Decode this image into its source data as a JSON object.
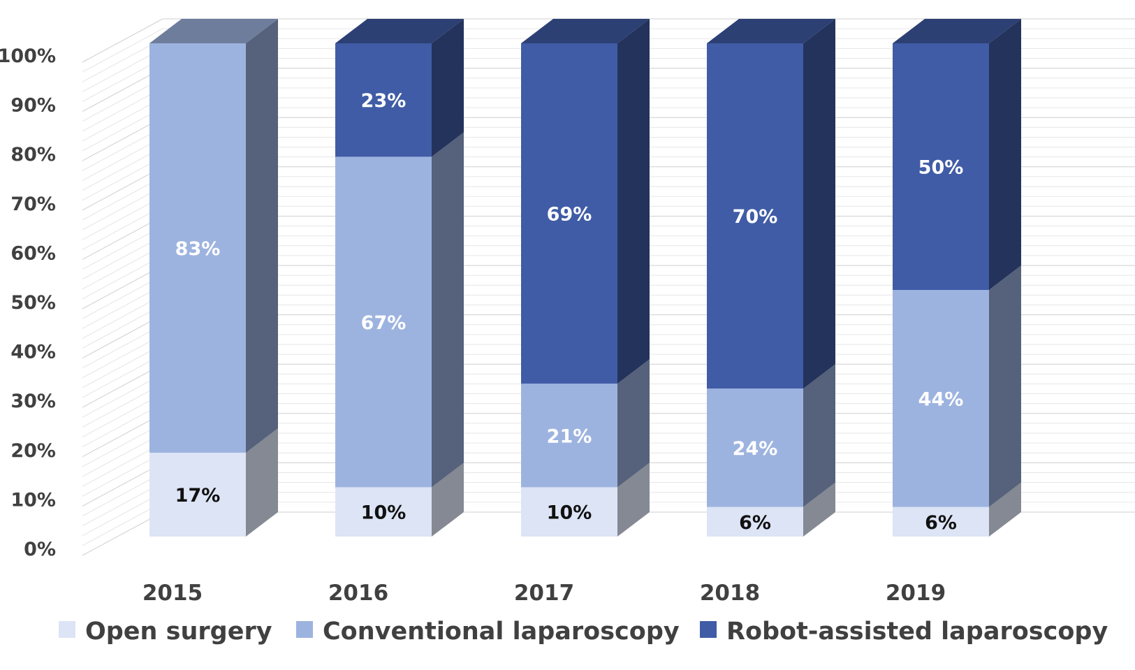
{
  "chart_data": {
    "type": "bar",
    "stacked": true,
    "percent_stacked": true,
    "three_d": true,
    "categories": [
      "2015",
      "2016",
      "2017",
      "2018",
      "2019"
    ],
    "series": [
      {
        "name": "Open surgery",
        "color": "#dce4f5",
        "label_color": "#111111",
        "values": [
          17,
          10,
          10,
          6,
          6
        ],
        "labels": [
          "17%",
          "10%",
          "10%",
          "6%",
          "6%"
        ]
      },
      {
        "name": "Conventional laparoscopy",
        "color": "#9db3df",
        "label_color": "#ffffff",
        "values": [
          83,
          67,
          21,
          24,
          44
        ],
        "labels": [
          "83%",
          "67%",
          "21%",
          "24%",
          "44%"
        ]
      },
      {
        "name": "Robot-assisted laparoscopy",
        "color": "#405ca6",
        "label_color": "#ffffff",
        "values": [
          0,
          23,
          69,
          70,
          50
        ],
        "labels": [
          "",
          "23%",
          "69%",
          "70%",
          "50%"
        ]
      }
    ],
    "ylim": [
      0,
      100
    ],
    "yticks": [
      "0%",
      "10%",
      "20%",
      "30%",
      "40%",
      "50%",
      "60%",
      "70%",
      "80%",
      "90%",
      "100%"
    ],
    "grid": true,
    "legend_position": "bottom",
    "title": "",
    "xlabel": "",
    "ylabel": ""
  }
}
